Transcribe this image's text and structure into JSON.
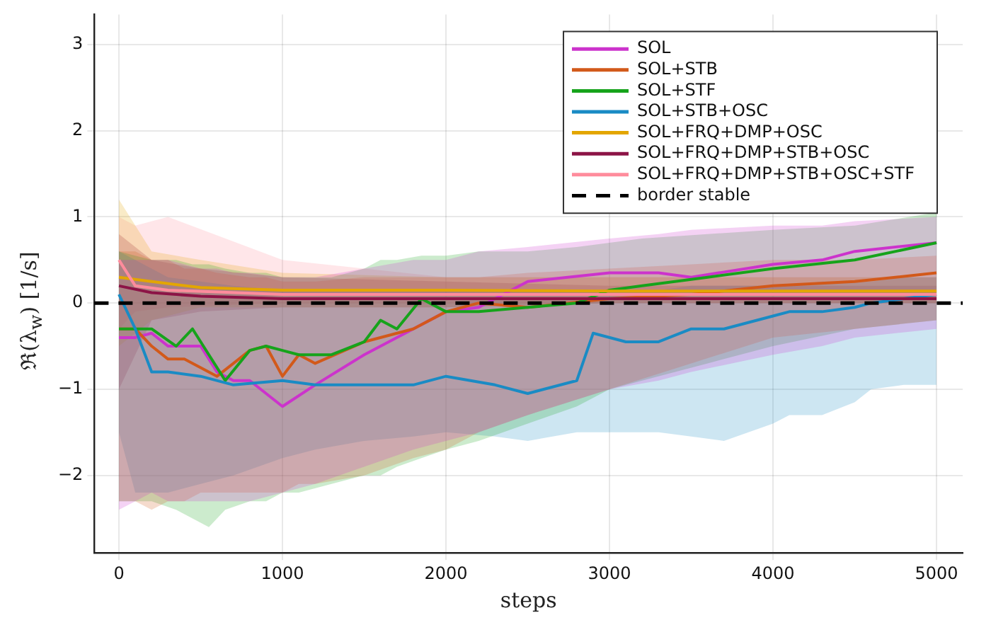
{
  "chart_data": {
    "type": "line",
    "xlabel": "steps",
    "ylabel": "ℜ(λ$_{w}$) [1/s]",
    "xlim": [
      -150,
      5160
    ],
    "ylim": [
      -2.9,
      3.35
    ],
    "xticks": [
      0,
      1000,
      2000,
      3000,
      4000,
      5000
    ],
    "yticks": [
      -2,
      -1,
      0,
      1,
      2,
      3
    ],
    "grid": true,
    "legend": "top right",
    "marker": "none",
    "line_style": "solid",
    "ref_lines": [
      {
        "axis": "y",
        "value": 0,
        "label": "border stable",
        "color": "#000000",
        "line_style": "dashed"
      }
    ],
    "series": [
      {
        "name": "SOL",
        "color": "#cc33cc",
        "x": [
          0,
          100,
          200,
          300,
          500,
          600,
          700,
          800,
          1000,
          1200,
          1500,
          1800,
          2000,
          2200,
          2500,
          3000,
          3300,
          3500,
          4000,
          4300,
          4500,
          5000
        ],
        "values": [
          -0.4,
          -0.4,
          -0.35,
          -0.5,
          -0.5,
          -0.8,
          -0.9,
          -0.9,
          -1.2,
          -0.95,
          -0.6,
          -0.3,
          -0.1,
          -0.05,
          0.25,
          0.35,
          0.35,
          0.3,
          0.45,
          0.5,
          0.6,
          0.7
        ],
        "lower": [
          -2.4,
          -2.3,
          -2.2,
          -2.3,
          -2.3,
          -2.3,
          -2.3,
          -2.3,
          -2.2,
          -2.1,
          -1.9,
          -1.7,
          -1.6,
          -1.5,
          -1.3,
          -1.0,
          -0.9,
          -0.8,
          -0.6,
          -0.5,
          -0.4,
          -0.3
        ],
        "upper": [
          0.5,
          0.5,
          0.5,
          0.5,
          0.4,
          0.4,
          0.35,
          0.35,
          0.3,
          0.3,
          0.4,
          0.5,
          0.5,
          0.6,
          0.65,
          0.75,
          0.8,
          0.85,
          0.9,
          0.9,
          0.95,
          1.0
        ]
      },
      {
        "name": "SOL+STB",
        "color": "#d2591a",
        "x": [
          0,
          100,
          200,
          300,
          400,
          500,
          600,
          800,
          900,
          1000,
          1100,
          1200,
          1500,
          1800,
          2000,
          2200,
          2500,
          3000,
          3500,
          4000,
          4500,
          5000
        ],
        "values": [
          -0.3,
          -0.3,
          -0.5,
          -0.65,
          -0.65,
          -0.75,
          -0.85,
          -0.55,
          -0.5,
          -0.85,
          -0.6,
          -0.7,
          -0.45,
          -0.3,
          -0.1,
          0.0,
          -0.05,
          0.05,
          0.1,
          0.2,
          0.25,
          0.35
        ],
        "lower": [
          -2.3,
          -2.3,
          -2.4,
          -2.3,
          -2.3,
          -2.2,
          -2.2,
          -2.2,
          -2.2,
          -2.2,
          -2.1,
          -2.1,
          -2.0,
          -1.8,
          -1.7,
          -1.5,
          -1.3,
          -1.0,
          -0.7,
          -0.4,
          -0.3,
          -0.2
        ],
        "upper": [
          0.6,
          0.6,
          0.5,
          0.5,
          0.4,
          0.4,
          0.35,
          0.3,
          0.3,
          0.25,
          0.25,
          0.25,
          0.3,
          0.3,
          0.3,
          0.3,
          0.35,
          0.4,
          0.45,
          0.5,
          0.5,
          0.55
        ]
      },
      {
        "name": "SOL+STF",
        "color": "#16a31b",
        "x": [
          0,
          200,
          350,
          450,
          550,
          650,
          800,
          900,
          1000,
          1100,
          1300,
          1500,
          1600,
          1700,
          1850,
          2000,
          2200,
          2500,
          2800,
          3000,
          3200,
          3600,
          4000,
          4500,
          5000
        ],
        "values": [
          -0.3,
          -0.3,
          -0.5,
          -0.3,
          -0.6,
          -0.9,
          -0.55,
          -0.5,
          -0.55,
          -0.6,
          -0.6,
          -0.45,
          -0.2,
          -0.3,
          0.05,
          -0.1,
          -0.1,
          -0.05,
          0.0,
          0.15,
          0.2,
          0.3,
          0.4,
          0.5,
          0.7
        ],
        "lower": [
          -2.3,
          -2.3,
          -2.4,
          -2.5,
          -2.6,
          -2.4,
          -2.3,
          -2.3,
          -2.2,
          -2.2,
          -2.1,
          -2.0,
          -2.0,
          -1.9,
          -1.8,
          -1.7,
          -1.6,
          -1.4,
          -1.2,
          -1.0,
          -0.9,
          -0.7,
          -0.5,
          -0.3,
          -0.2
        ],
        "upper": [
          0.6,
          0.5,
          0.5,
          0.45,
          0.45,
          0.4,
          0.35,
          0.35,
          0.3,
          0.3,
          0.3,
          0.4,
          0.5,
          0.5,
          0.55,
          0.55,
          0.6,
          0.6,
          0.65,
          0.7,
          0.75,
          0.8,
          0.85,
          0.9,
          1.05
        ]
      },
      {
        "name": "SOL+STB+OSC",
        "color": "#1a8bc4",
        "x": [
          0,
          100,
          200,
          300,
          500,
          700,
          1000,
          1200,
          1500,
          1800,
          2000,
          2300,
          2500,
          2800,
          2900,
          3100,
          3300,
          3500,
          3700,
          4000,
          4100,
          4300,
          4500,
          4600,
          4800,
          5000
        ],
        "values": [
          0.1,
          -0.3,
          -0.8,
          -0.8,
          -0.85,
          -0.95,
          -0.9,
          -0.95,
          -0.95,
          -0.95,
          -0.85,
          -0.95,
          -1.05,
          -0.9,
          -0.35,
          -0.45,
          -0.45,
          -0.3,
          -0.3,
          -0.15,
          -0.1,
          -0.1,
          -0.05,
          0.0,
          0.05,
          0.1
        ],
        "lower": [
          -1.5,
          -2.2,
          -2.2,
          -2.2,
          -2.1,
          -2.0,
          -1.8,
          -1.7,
          -1.6,
          -1.55,
          -1.5,
          -1.55,
          -1.6,
          -1.5,
          -1.5,
          -1.5,
          -1.5,
          -1.55,
          -1.6,
          -1.4,
          -1.3,
          -1.3,
          -1.15,
          -1.0,
          -0.95,
          -0.95
        ],
        "upper": [
          0.6,
          0.5,
          0.4,
          0.3,
          0.25,
          0.2,
          0.15,
          0.15,
          0.15,
          0.15,
          0.15,
          0.15,
          0.15,
          0.15,
          0.15,
          0.15,
          0.15,
          0.2,
          0.2,
          0.2,
          0.2,
          0.25,
          0.25,
          0.25,
          0.3,
          0.3
        ]
      },
      {
        "name": "SOL+FRQ+DMP+OSC",
        "color": "#e3a600",
        "x": [
          0,
          200,
          500,
          1000,
          2000,
          3000,
          4000,
          5000
        ],
        "values": [
          0.3,
          0.25,
          0.18,
          0.15,
          0.15,
          0.14,
          0.14,
          0.14
        ],
        "lower": [
          -0.5,
          -0.2,
          -0.05,
          -0.05,
          -0.05,
          0.0,
          0.0,
          0.0
        ],
        "upper": [
          1.2,
          0.6,
          0.5,
          0.35,
          0.3,
          0.3,
          0.3,
          0.3
        ]
      },
      {
        "name": "SOL+FRQ+DMP+STB+OSC",
        "color": "#8c1446",
        "x": [
          0,
          200,
          500,
          1000,
          2000,
          3000,
          4000,
          5000
        ],
        "values": [
          0.2,
          0.12,
          0.08,
          0.05,
          0.05,
          0.05,
          0.05,
          0.05
        ],
        "lower": [
          -1.0,
          -0.2,
          -0.1,
          -0.05,
          -0.05,
          0.0,
          0.0,
          0.0
        ],
        "upper": [
          0.8,
          0.5,
          0.4,
          0.3,
          0.25,
          0.2,
          0.2,
          0.2
        ]
      },
      {
        "name": "SOL+FRQ+DMP+STB+OSC+STF",
        "color": "#ff8c9c",
        "x": [
          0,
          100,
          300,
          1000,
          2000,
          3000,
          4000,
          5000
        ],
        "values": [
          0.5,
          0.2,
          0.15,
          0.1,
          0.1,
          0.1,
          0.1,
          0.1
        ],
        "lower": [
          -0.3,
          -0.1,
          -0.05,
          0.0,
          0.0,
          0.0,
          0.0,
          0.0
        ],
        "upper": [
          1.0,
          0.9,
          1.0,
          0.5,
          0.3,
          0.3,
          0.3,
          0.3
        ]
      }
    ]
  }
}
